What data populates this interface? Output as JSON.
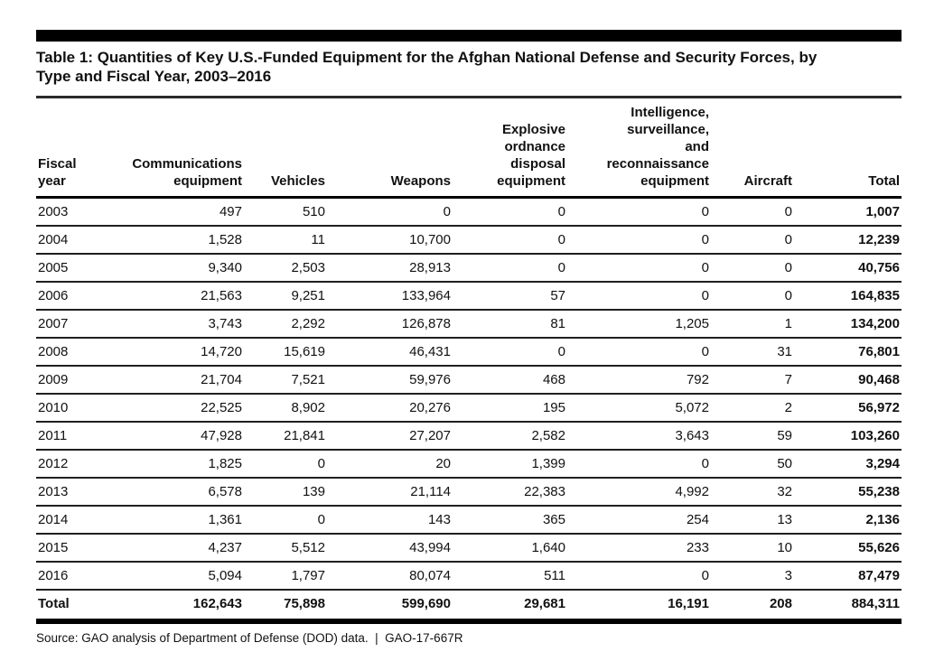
{
  "header": {
    "title": "Table 1: Quantities of Key U.S.-Funded Equipment for the Afghan National Defense and Security Forces, by\nType and Fiscal Year, 2003–2016"
  },
  "table": {
    "columns": [
      {
        "label": "Fiscal\nyear"
      },
      {
        "label": "Communications\nequipment"
      },
      {
        "label": "Vehicles"
      },
      {
        "label": "Weapons"
      },
      {
        "label": "Explosive\nordnance\ndisposal\nequipment"
      },
      {
        "label": "Intelligence,\nsurveillance,\nand\nreconnaissance\nequipment"
      },
      {
        "label": "Aircraft"
      },
      {
        "label": "Total"
      }
    ],
    "rows": [
      [
        "2003",
        "497",
        "510",
        "0",
        "0",
        "0",
        "0",
        "1,007"
      ],
      [
        "2004",
        "1,528",
        "11",
        "10,700",
        "0",
        "0",
        "0",
        "12,239"
      ],
      [
        "2005",
        "9,340",
        "2,503",
        "28,913",
        "0",
        "0",
        "0",
        "40,756"
      ],
      [
        "2006",
        "21,563",
        "9,251",
        "133,964",
        "57",
        "0",
        "0",
        "164,835"
      ],
      [
        "2007",
        "3,743",
        "2,292",
        "126,878",
        "81",
        "1,205",
        "1",
        "134,200"
      ],
      [
        "2008",
        "14,720",
        "15,619",
        "46,431",
        "0",
        "0",
        "31",
        "76,801"
      ],
      [
        "2009",
        "21,704",
        "7,521",
        "59,976",
        "468",
        "792",
        "7",
        "90,468"
      ],
      [
        "2010",
        "22,525",
        "8,902",
        "20,276",
        "195",
        "5,072",
        "2",
        "56,972"
      ],
      [
        "2011",
        "47,928",
        "21,841",
        "27,207",
        "2,582",
        "3,643",
        "59",
        "103,260"
      ],
      [
        "2012",
        "1,825",
        "0",
        "20",
        "1,399",
        "0",
        "50",
        "3,294"
      ],
      [
        "2013",
        "6,578",
        "139",
        "21,114",
        "22,383",
        "4,992",
        "32",
        "55,238"
      ],
      [
        "2014",
        "1,361",
        "0",
        "143",
        "365",
        "254",
        "13",
        "2,136"
      ],
      [
        "2015",
        "4,237",
        "5,512",
        "43,994",
        "1,640",
        "233",
        "10",
        "55,626"
      ],
      [
        "2016",
        "5,094",
        "1,797",
        "80,074",
        "511",
        "0",
        "3",
        "87,479"
      ]
    ],
    "total_row": [
      "Total",
      "162,643",
      "75,898",
      "599,690",
      "29,681",
      "16,191",
      "208",
      "884,311"
    ]
  },
  "footer": {
    "source": "Source: GAO analysis of Department of Defense (DOD) data.  |  GAO-17-667R"
  }
}
